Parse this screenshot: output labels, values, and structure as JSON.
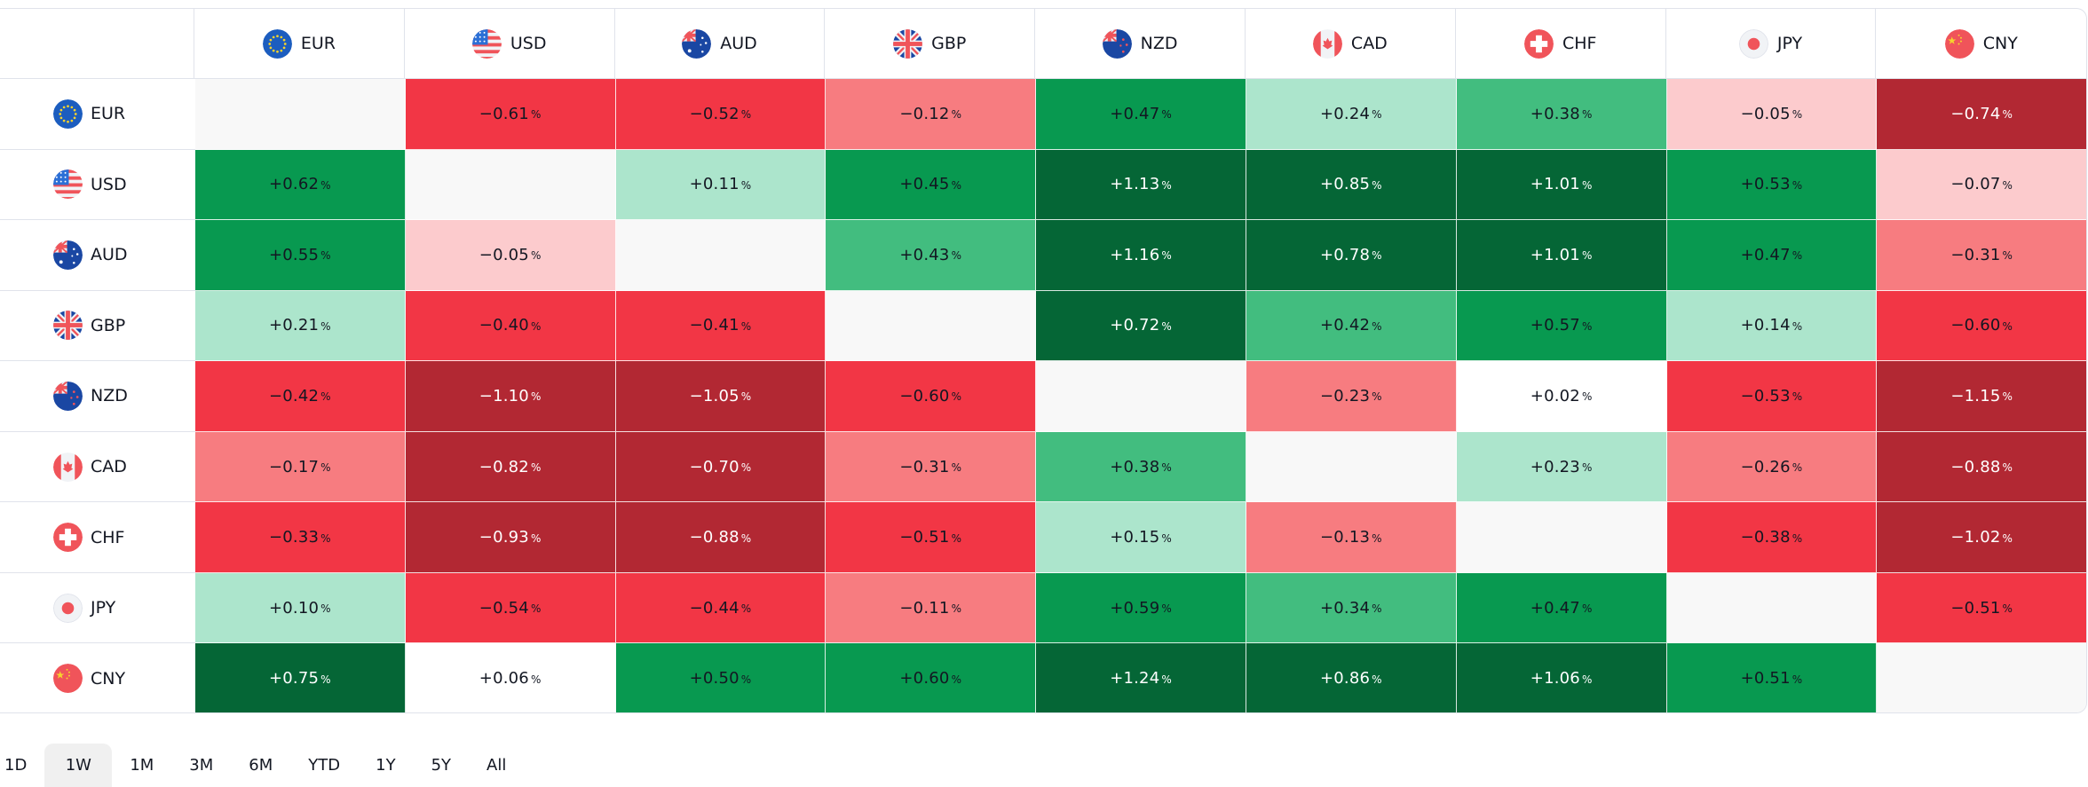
{
  "heatmap": {
    "currencies": [
      {
        "code": "EUR",
        "icon": "eu-flag-icon"
      },
      {
        "code": "USD",
        "icon": "us-flag-icon"
      },
      {
        "code": "AUD",
        "icon": "au-flag-icon"
      },
      {
        "code": "GBP",
        "icon": "gb-flag-icon"
      },
      {
        "code": "NZD",
        "icon": "nz-flag-icon"
      },
      {
        "code": "CAD",
        "icon": "ca-flag-icon"
      },
      {
        "code": "CHF",
        "icon": "ch-flag-icon"
      },
      {
        "code": "JPY",
        "icon": "jp-flag-icon"
      },
      {
        "code": "CNY",
        "icon": "cn-flag-icon"
      }
    ],
    "percent_suffix": "%",
    "rows": [
      [
        "",
        "−0.61",
        "−0.52",
        "−0.12",
        "+0.47",
        "+0.24",
        "+0.38",
        "−0.05",
        "−0.74"
      ],
      [
        "+0.62",
        "",
        "+0.11",
        "+0.45",
        "+1.13",
        "+0.85",
        "+1.01",
        "+0.53",
        "−0.07"
      ],
      [
        "+0.55",
        "−0.05",
        "",
        "+0.43",
        "+1.16",
        "+0.78",
        "+1.01",
        "+0.47",
        "−0.31"
      ],
      [
        "+0.21",
        "−0.40",
        "−0.41",
        "",
        "+0.72",
        "+0.42",
        "+0.57",
        "+0.14",
        "−0.60"
      ],
      [
        "−0.42",
        "−1.10",
        "−1.05",
        "−0.60",
        "",
        "−0.23",
        "+0.02",
        "−0.53",
        "−1.15"
      ],
      [
        "−0.17",
        "−0.82",
        "−0.70",
        "−0.31",
        "+0.38",
        "",
        "+0.23",
        "−0.26",
        "−0.88"
      ],
      [
        "−0.33",
        "−0.93",
        "−0.88",
        "−0.51",
        "+0.15",
        "−0.13",
        "",
        "−0.38",
        "−1.02"
      ],
      [
        "+0.10",
        "−0.54",
        "−0.44",
        "−0.11",
        "+0.59",
        "+0.34",
        "+0.47",
        "",
        "−0.51"
      ],
      [
        "+0.75",
        "+0.06",
        "+0.50",
        "+0.60",
        "+1.24",
        "+0.86",
        "+1.06",
        "+0.51",
        ""
      ]
    ],
    "color_levels": {
      "strong_negative": "#b22833",
      "negative": "#f23645",
      "mild_negative": "#f77c80",
      "slight_negative": "#fccbcd",
      "neutral": "#ffffff",
      "slight_positive": "#ace5cc",
      "mild_positive": "#42bd7f",
      "positive": "#089950",
      "strong_positive": "#056636",
      "empty": "#f8f8f8"
    },
    "cell_levels": [
      [
        "empty",
        "negative",
        "negative",
        "mild_negative",
        "positive",
        "slight_positive",
        "mild_positive",
        "slight_negative",
        "strong_negative"
      ],
      [
        "positive",
        "empty",
        "slight_positive",
        "positive",
        "strong_positive",
        "strong_positive",
        "strong_positive",
        "positive",
        "slight_negative"
      ],
      [
        "positive",
        "slight_negative",
        "empty",
        "mild_positive",
        "strong_positive",
        "strong_positive",
        "strong_positive",
        "positive",
        "mild_negative"
      ],
      [
        "slight_positive",
        "negative",
        "negative",
        "empty",
        "strong_positive",
        "mild_positive",
        "positive",
        "slight_positive",
        "negative"
      ],
      [
        "negative",
        "strong_negative",
        "strong_negative",
        "negative",
        "empty",
        "mild_negative",
        "neutral",
        "negative",
        "strong_negative"
      ],
      [
        "mild_negative",
        "strong_negative",
        "strong_negative",
        "mild_negative",
        "mild_positive",
        "empty",
        "slight_positive",
        "mild_negative",
        "strong_negative"
      ],
      [
        "negative",
        "strong_negative",
        "strong_negative",
        "negative",
        "slight_positive",
        "mild_negative",
        "empty",
        "negative",
        "strong_negative"
      ],
      [
        "slight_positive",
        "negative",
        "negative",
        "mild_negative",
        "positive",
        "mild_positive",
        "positive",
        "empty",
        "negative"
      ],
      [
        "strong_positive",
        "neutral",
        "positive",
        "positive",
        "strong_positive",
        "strong_positive",
        "strong_positive",
        "positive",
        "empty"
      ]
    ]
  },
  "periods": {
    "items": [
      "1D",
      "1W",
      "1M",
      "3M",
      "6M",
      "YTD",
      "1Y",
      "5Y",
      "All"
    ],
    "selected": "1W"
  }
}
